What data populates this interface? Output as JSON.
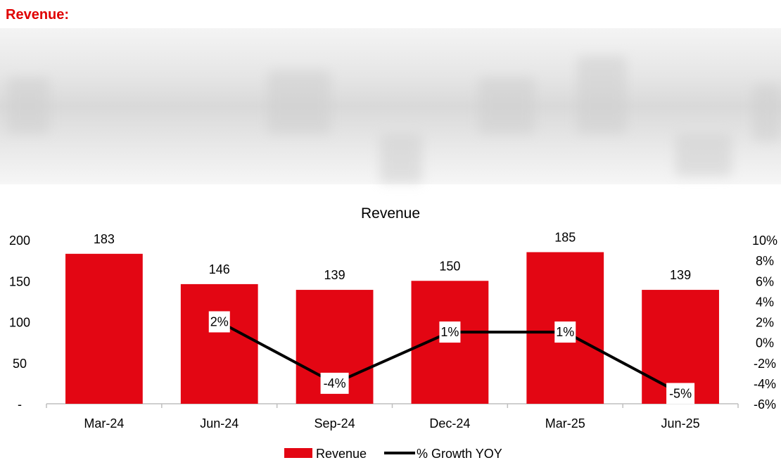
{
  "section": {
    "title": "Revenue:"
  },
  "chart_data": {
    "type": "bar",
    "title": "Revenue",
    "categories": [
      "Mar-24",
      "Jun-24",
      "Sep-24",
      "Dec-24",
      "Mar-25",
      "Jun-25"
    ],
    "series": [
      {
        "name": "Revenue",
        "type": "bar",
        "axis": "left",
        "values": [
          183,
          146,
          139,
          150,
          185,
          139
        ],
        "labels": [
          "183",
          "146",
          "139",
          "150",
          "185",
          "139"
        ]
      },
      {
        "name": "% Growth YOY",
        "type": "line",
        "axis": "right",
        "values": [
          null,
          2,
          -4,
          1,
          1,
          -5
        ],
        "labels": [
          null,
          "2%",
          "-4%",
          "1%",
          "1%",
          "-5%"
        ]
      }
    ],
    "y_left": {
      "min": 0,
      "max": 200,
      "ticks": [
        0,
        50,
        100,
        150,
        200
      ],
      "tick_labels": [
        "-",
        "50",
        "100",
        "150",
        "200"
      ]
    },
    "y_right": {
      "min": -6,
      "max": 10,
      "ticks": [
        -6,
        -4,
        -2,
        0,
        2,
        4,
        6,
        8,
        10
      ],
      "tick_labels": [
        "-6%",
        "-4%",
        "-2%",
        "0%",
        "2%",
        "4%",
        "6%",
        "8%",
        "10%"
      ]
    },
    "legend": {
      "position": "bottom",
      "entries": [
        "Revenue",
        "% Growth YOY"
      ]
    },
    "colors": {
      "bar": "#e30613",
      "line": "#000000"
    },
    "grid": false
  }
}
